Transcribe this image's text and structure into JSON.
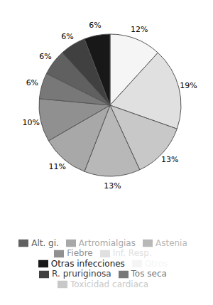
{
  "chart_data": {
    "type": "pie",
    "categories": [
      "Otros",
      "Inf. Resp.",
      "Toxicidad cardiaca",
      "Astenia",
      "Artromialgias",
      "Fiebre",
      "Tos seca",
      "Alt. gi.",
      "R. pruriginosa",
      "Otras infecciones"
    ],
    "values": [
      12,
      19,
      13,
      13,
      11,
      10,
      6,
      6,
      6,
      6
    ],
    "value_labels": [
      "12%",
      "19%",
      "13%",
      "13%",
      "11%",
      "10%",
      "6%",
      "6%",
      "6%",
      "6%"
    ],
    "colors": [
      "#f5f5f5",
      "#e0e0e0",
      "#c8c8c8",
      "#b8b8b8",
      "#a8a8a8",
      "#909090",
      "#787878",
      "#606060",
      "#404040",
      "#181818"
    ],
    "data_labels": true,
    "legend": "bottom"
  }
}
